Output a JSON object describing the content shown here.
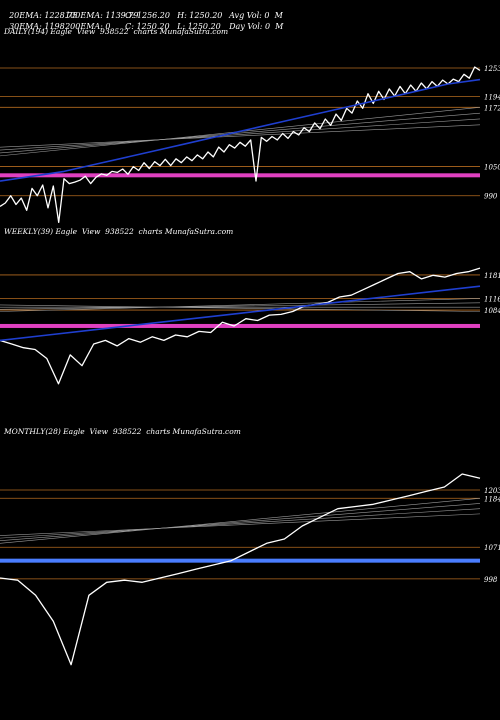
{
  "header": {
    "row1": [
      "20EMA: 1228.75",
      "100EMA: 1139.79",
      "O: 1256.20",
      "H: 1250.20",
      "Avg Vol: 0  M"
    ],
    "row2": [
      "30EMA: 1198",
      "200EMA: 0",
      "C: 1250.20",
      "L: 1250.20",
      "Day Vol: 0  M"
    ]
  },
  "colors": {
    "background": "#000000",
    "price": "#ffffff",
    "ema": "#1f3fd0",
    "band": "#e040c0",
    "support": "#b36a1f",
    "monthly_band": "#4a7dff"
  },
  "chart_data": [
    {
      "type": "line",
      "title": "DAILY(194) Eagle  View  938522  charts MunafaSutra.com",
      "levels": [
        "1253",
        "1172",
        "1194",
        "1050",
        "990"
      ],
      "level_values": [
        1253,
        1172,
        1194,
        1050,
        990
      ],
      "band_value": 1032,
      "ylim": [
        940,
        1290
      ],
      "series": [
        {
          "values": [
            968,
            975,
            990,
            972,
            985,
            960,
            1005,
            990,
            1012,
            965,
            1010,
            935,
            1025,
            1015,
            1018,
            1022,
            1030,
            1015,
            1028,
            1035,
            1032,
            1040,
            1038,
            1045,
            1034,
            1050,
            1042,
            1058,
            1046,
            1060,
            1052,
            1065,
            1052,
            1066,
            1058,
            1070,
            1062,
            1074,
            1066,
            1080,
            1070,
            1090,
            1080,
            1095,
            1088,
            1100,
            1092,
            1105,
            1020,
            1110,
            1102,
            1112,
            1105,
            1118,
            1108,
            1122,
            1115,
            1130,
            1122,
            1140,
            1128,
            1148,
            1135,
            1158,
            1145,
            1170,
            1160,
            1185,
            1170,
            1200,
            1180,
            1205,
            1188,
            1210,
            1195,
            1215,
            1200,
            1218,
            1205,
            1222,
            1210,
            1225,
            1215,
            1228,
            1220,
            1230,
            1225,
            1240,
            1232,
            1255,
            1248
          ]
        },
        {
          "name": "20EMA",
          "values": [
            1020,
            1030,
            1040,
            1055,
            1070,
            1085,
            1100,
            1115,
            1130,
            1145,
            1160,
            1175,
            1190,
            1205,
            1220,
            1229
          ]
        }
      ]
    },
    {
      "type": "line",
      "title": "WEEKLY(39) Eagle  View  938522  charts MunafaSutra.com",
      "levels": [
        "1181",
        "1116",
        "1084"
      ],
      "level_values": [
        1181,
        1116,
        1084
      ],
      "band_value": 1040,
      "ylim": [
        780,
        1250
      ],
      "series": [
        {
          "values": [
            1000,
            990,
            980,
            975,
            950,
            880,
            960,
            930,
            990,
            1000,
            985,
            1005,
            995,
            1010,
            1000,
            1015,
            1010,
            1025,
            1022,
            1050,
            1040,
            1060,
            1055,
            1070,
            1072,
            1080,
            1095,
            1100,
            1105,
            1120,
            1125,
            1140,
            1155,
            1170,
            1185,
            1190,
            1170,
            1180,
            1175,
            1185,
            1190,
            1200
          ]
        },
        {
          "name": "EMA",
          "values": [
            1000,
            1015,
            1030,
            1045,
            1060,
            1075,
            1090,
            1105,
            1120,
            1135,
            1150
          ]
        }
      ]
    },
    {
      "type": "line",
      "title": "MONTHLY(28) Eagle  View  938522  charts MunafaSutra.com",
      "levels": [
        "1203",
        "1184",
        "1071",
        "998"
      ],
      "level_values": [
        1203,
        1184,
        1071,
        998
      ],
      "band_value": 1040,
      "ylim": [
        700,
        1300
      ],
      "series": [
        {
          "values": [
            1000,
            995,
            960,
            900,
            800,
            960,
            990,
            995,
            990,
            1000,
            1010,
            1020,
            1030,
            1040,
            1060,
            1080,
            1090,
            1120,
            1140,
            1160,
            1165,
            1170,
            1180,
            1190,
            1200,
            1210,
            1240,
            1230
          ]
        }
      ]
    }
  ]
}
